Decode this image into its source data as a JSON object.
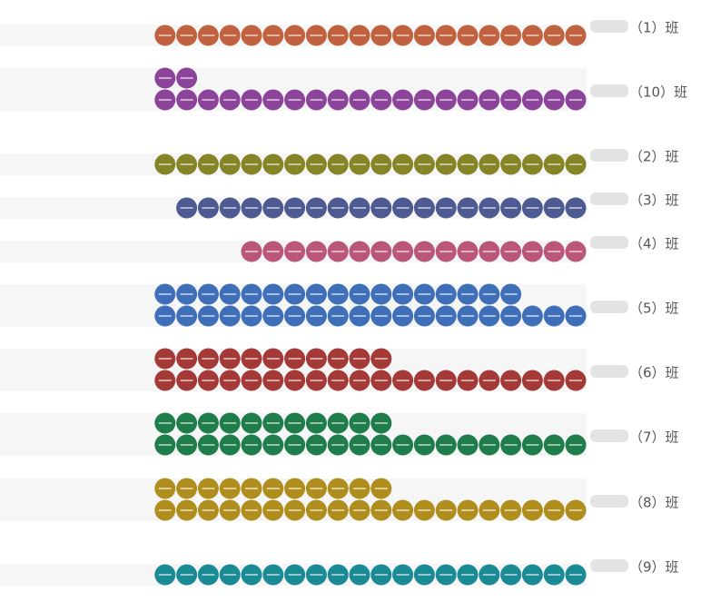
{
  "chart_data": {
    "type": "pictorial-stacked-dots",
    "rows": [
      {
        "label": "（1）班",
        "count": 20,
        "color": "#c0623f"
      },
      {
        "label": "（10）班",
        "count": 22,
        "color": "#8b449a"
      },
      {
        "label": "（2）班",
        "count": 20,
        "color": "#858426"
      },
      {
        "label": "（3）班",
        "count": 19,
        "color": "#4e5a92"
      },
      {
        "label": "（4）班",
        "count": 16,
        "color": "#b95679"
      },
      {
        "label": "（5）班",
        "count": 37,
        "color": "#3f6fb9"
      },
      {
        "label": "（6）班",
        "count": 31,
        "color": "#a43a37"
      },
      {
        "label": "（7）班",
        "count": 31,
        "color": "#1f7d4c"
      },
      {
        "label": "（8）班",
        "count": 31,
        "color": "#b08e1d"
      },
      {
        "label": "（9）班",
        "count": 20,
        "color": "#1a8a95"
      }
    ]
  }
}
